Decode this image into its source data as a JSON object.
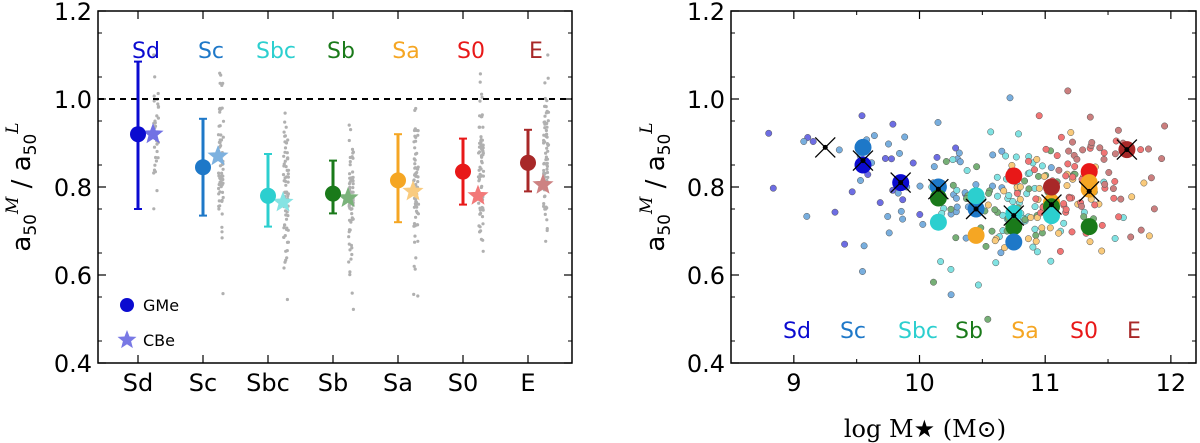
{
  "colors": {
    "Sd": "#0b0bd0",
    "Sc": "#1e78c8",
    "Sbc": "#2ccfcf",
    "Sb": "#1a7a1a",
    "Sa": "#f5a623",
    "S0": "#e81818",
    "E": "#a82828",
    "ref_line": "#000000",
    "raw_points": "#b0b0b0"
  },
  "chart_data": [
    {
      "type": "scatter",
      "ylabel": "a50M / a50L",
      "ylim": [
        0.4,
        1.2
      ],
      "yticks": [
        "0.4",
        "0.6",
        "0.8",
        "1.0",
        "1.2"
      ],
      "categories": [
        "Sd",
        "Sc",
        "Sbc",
        "Sb",
        "Sa",
        "S0",
        "E"
      ],
      "top_labels": [
        "Sd",
        "Sc",
        "Sbc",
        "Sb",
        "Sa",
        "S0",
        "E"
      ],
      "reference_line": 1.0,
      "legend": {
        "placement": "bottom-left",
        "entries": [
          "GMe",
          "CBe"
        ]
      },
      "series": [
        {
          "name": "GMe",
          "marker": "circle",
          "values": [
            0.92,
            0.845,
            0.78,
            0.785,
            0.815,
            0.835,
            0.855
          ],
          "err_low": [
            0.75,
            0.735,
            0.71,
            0.74,
            0.72,
            0.76,
            0.79
          ],
          "err_high": [
            1.085,
            0.955,
            0.875,
            0.86,
            0.92,
            0.91,
            0.93
          ]
        },
        {
          "name": "CBe",
          "marker": "star",
          "values": [
            0.92,
            0.87,
            0.765,
            0.775,
            0.79,
            0.78,
            0.805
          ]
        }
      ]
    },
    {
      "type": "scatter",
      "xlabel": "log M★ (M⊙)",
      "ylabel": "a50M / a50L",
      "xlim": [
        8.5,
        12.2
      ],
      "ylim": [
        0.4,
        1.2
      ],
      "xticks": [
        "9",
        "10",
        "11",
        "12"
      ],
      "yticks": [
        "0.4",
        "0.6",
        "0.8",
        "1.0",
        "1.2"
      ],
      "bottom_labels": [
        "Sd",
        "Sc",
        "Sbc",
        "Sb",
        "Sa",
        "S0",
        "E"
      ],
      "binned_means": [
        {
          "type": "Sd",
          "x": 9.55,
          "y": 0.85
        },
        {
          "type": "Sc",
          "x": 9.55,
          "y": 0.89
        },
        {
          "type": "Sd",
          "x": 9.85,
          "y": 0.81
        },
        {
          "type": "Sc",
          "x": 10.15,
          "y": 0.8
        },
        {
          "type": "Sb",
          "x": 10.15,
          "y": 0.775
        },
        {
          "type": "Sbc",
          "x": 10.15,
          "y": 0.72
        },
        {
          "type": "Sc",
          "x": 10.45,
          "y": 0.75
        },
        {
          "type": "Sbc",
          "x": 10.45,
          "y": 0.78
        },
        {
          "type": "Sa",
          "x": 10.45,
          "y": 0.69
        },
        {
          "type": "Sbc",
          "x": 10.75,
          "y": 0.74
        },
        {
          "type": "Sb",
          "x": 10.75,
          "y": 0.71
        },
        {
          "type": "Sc",
          "x": 10.75,
          "y": 0.675
        },
        {
          "type": "S0",
          "x": 10.75,
          "y": 0.825
        },
        {
          "type": "Sa",
          "x": 11.05,
          "y": 0.765
        },
        {
          "type": "Sb",
          "x": 11.05,
          "y": 0.755
        },
        {
          "type": "Sbc",
          "x": 11.05,
          "y": 0.735
        },
        {
          "type": "E",
          "x": 11.05,
          "y": 0.8
        },
        {
          "type": "S0",
          "x": 11.35,
          "y": 0.835
        },
        {
          "type": "Sa",
          "x": 11.35,
          "y": 0.81
        },
        {
          "type": "Sa",
          "x": 11.35,
          "y": 0.795
        },
        {
          "type": "Sb",
          "x": 11.35,
          "y": 0.71
        },
        {
          "type": "E",
          "x": 11.65,
          "y": 0.885
        }
      ],
      "total_means": [
        {
          "x": 9.25,
          "y": 0.89
        },
        {
          "x": 9.55,
          "y": 0.86
        },
        {
          "x": 9.85,
          "y": 0.81
        },
        {
          "x": 10.15,
          "y": 0.795
        },
        {
          "x": 10.45,
          "y": 0.75
        },
        {
          "x": 10.75,
          "y": 0.735
        },
        {
          "x": 11.05,
          "y": 0.76
        },
        {
          "x": 11.35,
          "y": 0.79
        },
        {
          "x": 11.65,
          "y": 0.885
        }
      ]
    }
  ]
}
